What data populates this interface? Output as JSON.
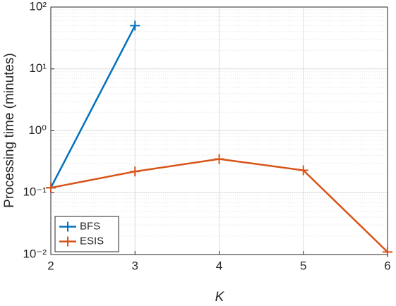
{
  "chart_data": {
    "type": "line",
    "x_label": "K",
    "y_label": "Processing time (minutes)",
    "x": [
      2,
      3,
      4,
      5,
      6
    ],
    "series": [
      {
        "name": "BFS",
        "color": "#0072bd",
        "values": [
          0.12,
          50,
          null,
          null,
          null
        ]
      },
      {
        "name": "ESIS",
        "color": "#d95319",
        "values": [
          0.12,
          0.22,
          0.35,
          0.23,
          0.011
        ]
      }
    ],
    "xlim": [
      2,
      6
    ],
    "xticks": [
      2,
      3,
      4,
      5,
      6
    ],
    "ylim": [
      0.01,
      100
    ],
    "log_y": true,
    "yticks": [
      {
        "value": 0.01,
        "label": "10⁻²"
      },
      {
        "value": 0.1,
        "label": "10⁻¹"
      },
      {
        "value": 1,
        "label": "10⁰"
      },
      {
        "value": 10,
        "label": "10¹"
      },
      {
        "value": 100,
        "label": "10²"
      }
    ],
    "grid": true,
    "minor_grid": true,
    "legend": "lower-left"
  }
}
